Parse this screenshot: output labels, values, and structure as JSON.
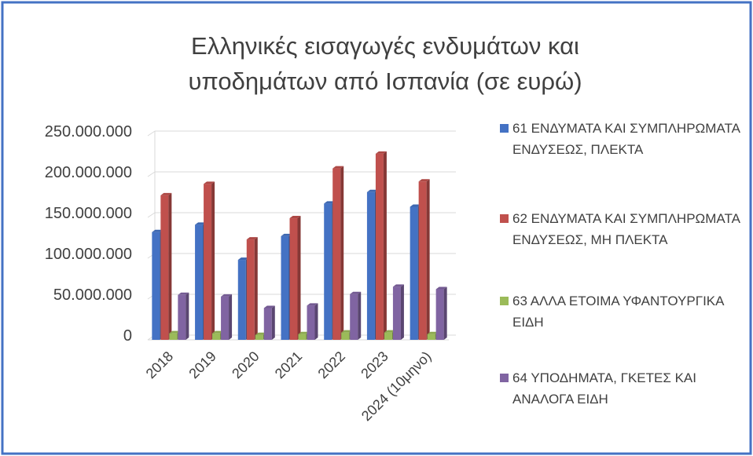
{
  "chart_data": {
    "type": "bar",
    "title": "Ελληνικές εισαγωγές ενδυμάτων και υποδημάτων από Ισπανία (σε ευρώ)",
    "categories": [
      "2018",
      "2019",
      "2020",
      "2021",
      "2022",
      "2023",
      "2024 (10μηνο)"
    ],
    "series": [
      {
        "name": "61 ΕΝΔΥΜΑΤΑ ΚΑΙ ΣΥΜΠΛΗΡΩΜΑΤΑ ΕΝΔΥΣΕΩΣ, ΠΛΕΚΤΑ",
        "color": "#4472c4",
        "values": [
          132000000,
          141000000,
          98000000,
          127000000,
          167000000,
          181000000,
          163000000
        ]
      },
      {
        "name": "62 ΕΝΔΥΜΑΤΑ ΚΑΙ ΣΥΜΠΛΗΡΩΜΑΤΑ ΕΝΔΥΣΕΩΣ, ΜΗ ΠΛΕΚΤΑ",
        "color": "#c0504d",
        "values": [
          177000000,
          191000000,
          123000000,
          149000000,
          210000000,
          228000000,
          194000000
        ]
      },
      {
        "name": "63 ΑΛΛΑ ΕΤΟΙΜΑ ΥΦΑΝΤΟΥΡΓΙΚΑ ΕΙΔΗ",
        "color": "#9bbb59",
        "values": [
          8000000,
          8000000,
          6000000,
          7000000,
          9000000,
          9000000,
          7000000
        ]
      },
      {
        "name": "64 ΥΠΟΔΗΜΑΤΑ, ΓΚΕΤΕΣ ΚΑΙ ΑΝΑΛΟΓΑ ΕΙΔΗ",
        "color": "#8064a2",
        "values": [
          55000000,
          53000000,
          39000000,
          42000000,
          56000000,
          65000000,
          62000000
        ]
      }
    ],
    "ylim": [
      0,
      250000000
    ],
    "yticks": [
      0,
      {
        "value": 50000000,
        "label": "50.000.000"
      },
      {
        "value": 100000000,
        "label": "100.000.000"
      },
      {
        "value": 150000000,
        "label": "150.000.000"
      },
      {
        "value": 200000000,
        "label": "200.000.000"
      },
      {
        "value": 250000000,
        "label": "250.000.000"
      }
    ],
    "grid": true,
    "legend": "right"
  }
}
